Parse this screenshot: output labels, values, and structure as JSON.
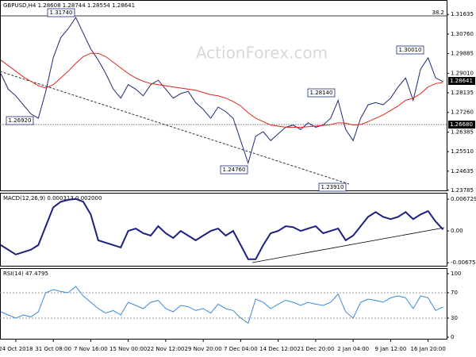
{
  "chart_data": [
    {
      "type": "line",
      "title": "GBPUSD,H4  1.28608 1.28744 1.28554 1.28641",
      "watermark": "ActionForex.com",
      "annotations": [
        "1.31740",
        "1.26920",
        "1.24760",
        "1.23910",
        "1.28140",
        "1.30010",
        "38.2"
      ],
      "level_labels": [
        "1.28641",
        "1.26680"
      ],
      "ylim": [
        1.2378,
        1.3228
      ],
      "yticks": [
        1.31635,
        {
          "value": 1.3076,
          "label": "1.30760"
        },
        1.29885,
        {
          "value": 1.2901,
          "label": "1.29010"
        },
        1.28135,
        {
          "value": 1.2726,
          "label": "1.27260"
        },
        1.26385,
        {
          "value": 1.2551,
          "label": "1.25510"
        },
        1.24635,
        1.23785
      ],
      "series": [
        {
          "name": "GBPUSD",
          "color": "#1c2a78",
          "values": [
            1.29,
            1.283,
            1.28,
            1.276,
            1.272,
            1.27,
            1.282,
            1.297,
            1.306,
            1.31,
            1.315,
            1.308,
            1.301,
            1.296,
            1.29,
            1.283,
            1.279,
            1.285,
            1.283,
            1.28,
            1.285,
            1.287,
            1.283,
            1.279,
            1.281,
            1.282,
            1.277,
            1.274,
            1.27,
            1.275,
            1.273,
            1.27,
            1.26,
            1.25,
            1.262,
            1.264,
            1.26,
            1.263,
            1.266,
            1.267,
            1.265,
            1.268,
            1.266,
            1.267,
            1.27,
            1.278,
            1.265,
            1.26,
            1.27,
            1.276,
            1.277,
            1.276,
            1.279,
            1.284,
            1.288,
            1.278,
            1.292,
            1.297,
            1.288,
            1.2864
          ]
        },
        {
          "name": "MA",
          "color": "#e0261c",
          "values": [
            1.296,
            1.2935,
            1.291,
            1.2885,
            1.2865,
            1.2845,
            1.2835,
            1.285,
            1.288,
            1.291,
            1.2945,
            1.2975,
            1.299,
            1.299,
            1.2975,
            1.295,
            1.2925,
            1.29,
            1.288,
            1.2865,
            1.2855,
            1.285,
            1.2845,
            1.284,
            1.2835,
            1.283,
            1.2825,
            1.2815,
            1.2805,
            1.28,
            1.279,
            1.2775,
            1.2755,
            1.2725,
            1.27,
            1.2685,
            1.267,
            1.2665,
            1.266,
            1.266,
            1.266,
            1.2662,
            1.2665,
            1.2668,
            1.2672,
            1.268,
            1.2678,
            1.267,
            1.2672,
            1.2685,
            1.27,
            1.2715,
            1.2735,
            1.2755,
            1.278,
            1.279,
            1.281,
            1.284,
            1.2855,
            1.286
          ]
        }
      ]
    },
    {
      "type": "line",
      "title": "MACD(12,26,9) 0.000313 0.002000",
      "ylim": [
        -0.0074,
        0.0081
      ],
      "yticks": [
        0.006729,
        {
          "value": 0,
          "label": "0.00"
        },
        -0.006758
      ],
      "series": [
        {
          "name": "MACD",
          "color": "#1c2080",
          "values": [
            -0.003,
            -0.004,
            -0.005,
            -0.0045,
            -0.004,
            -0.003,
            0.001,
            0.005,
            0.0062,
            0.0066,
            0.0068,
            0.0062,
            0.0035,
            -0.002,
            -0.0025,
            -0.003,
            -0.0035,
            0,
            0.0005,
            -0.0005,
            -0.001,
            0.001,
            -0.0005,
            -0.0015,
            0,
            -0.001,
            -0.002,
            -0.001,
            0,
            0.0005,
            -0.001,
            0,
            -0.003,
            -0.006,
            -0.006,
            -0.003,
            -0.0005,
            0,
            0.001,
            0.0008,
            0,
            0.0005,
            0.001,
            -0.0005,
            0,
            0.0005,
            -0.002,
            -0.001,
            0.001,
            0.003,
            0.004,
            0.003,
            0.0025,
            0.003,
            0.004,
            0.0025,
            0.0035,
            0.0042,
            0.002,
            0.0003
          ]
        }
      ]
    },
    {
      "type": "line",
      "title": "RSI(14) 47.4795",
      "ylim": [
        -2.5,
        108.75
      ],
      "yticks": [
        100,
        70,
        30,
        0
      ],
      "categories": [
        null,
        null,
        "24 Oct 2018",
        null,
        null,
        null,
        null,
        "31 Oct 08:00",
        null,
        null,
        null,
        null,
        "7 Nov 16:00",
        null,
        null,
        null,
        null,
        "15 Nov 00:00",
        null,
        null,
        null,
        null,
        "22 Nov 12:00",
        null,
        null,
        null,
        null,
        "29 Nov 20:00",
        null,
        null,
        null,
        null,
        "7 Dec 04:00",
        null,
        null,
        null,
        null,
        "14 Dec 12:00",
        null,
        null,
        null,
        null,
        "21 Dec 20:00",
        null,
        null,
        null,
        null,
        "2 Jan 04:00",
        null,
        null,
        null,
        null,
        "9 Jan 12:00",
        null,
        null,
        null,
        null,
        "16 Jan 20:00",
        null,
        null
      ],
      "series": [
        {
          "name": "RSI",
          "color": "#3a8ad8",
          "values": [
            40,
            35,
            30,
            35,
            32,
            40,
            70,
            75,
            72,
            70,
            80,
            65,
            55,
            45,
            38,
            42,
            35,
            55,
            50,
            45,
            55,
            58,
            45,
            40,
            50,
            48,
            42,
            45,
            38,
            52,
            45,
            42,
            30,
            22,
            60,
            55,
            45,
            52,
            58,
            55,
            50,
            55,
            52,
            50,
            55,
            68,
            40,
            30,
            55,
            60,
            58,
            55,
            62,
            65,
            62,
            45,
            65,
            62,
            42,
            47.5
          ]
        }
      ]
    }
  ]
}
